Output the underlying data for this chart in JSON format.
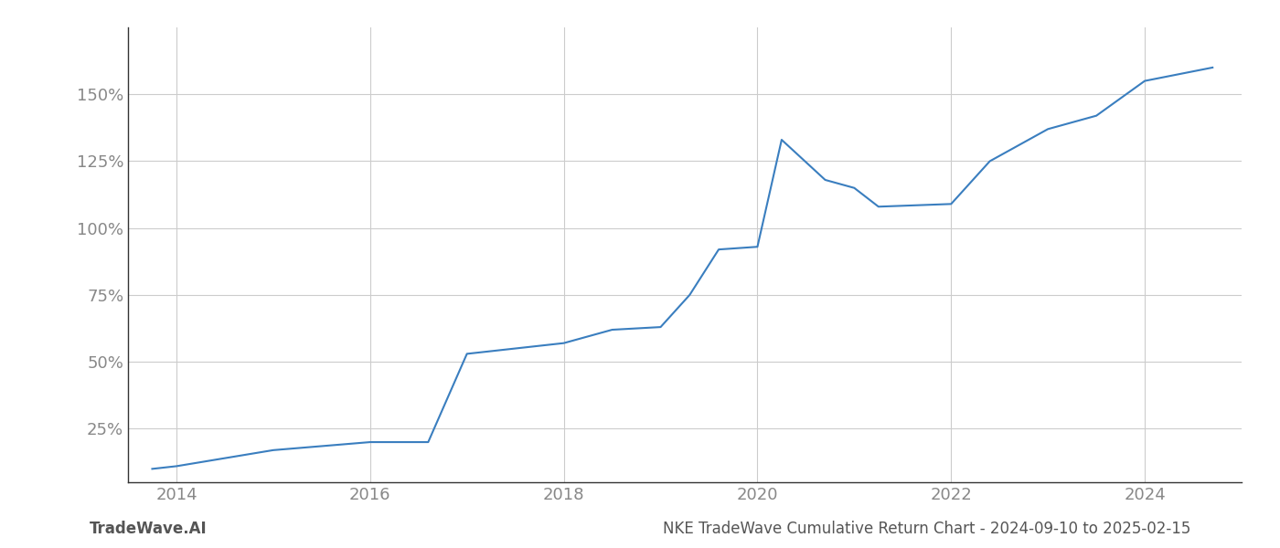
{
  "x_values": [
    2013.75,
    2014.0,
    2015.0,
    2016.0,
    2016.6,
    2017.0,
    2017.5,
    2018.0,
    2018.5,
    2019.0,
    2019.3,
    2019.6,
    2020.0,
    2020.25,
    2020.7,
    2021.0,
    2021.25,
    2022.0,
    2022.4,
    2023.0,
    2023.5,
    2024.0,
    2024.7
  ],
  "y_values": [
    10,
    11,
    17,
    20,
    20,
    53,
    55,
    57,
    62,
    63,
    75,
    92,
    93,
    133,
    118,
    115,
    108,
    109,
    125,
    137,
    142,
    155,
    160
  ],
  "line_color": "#3a7ebf",
  "line_width": 1.5,
  "xlim": [
    2013.5,
    2025.0
  ],
  "ylim": [
    5,
    175
  ],
  "xticks": [
    2014,
    2016,
    2018,
    2020,
    2022,
    2024
  ],
  "yticks": [
    25,
    50,
    75,
    100,
    125,
    150
  ],
  "grid_color": "#cccccc",
  "background_color": "#ffffff",
  "footer_left": "TradeWave.AI",
  "footer_right": "NKE TradeWave Cumulative Return Chart - 2024-09-10 to 2025-02-15",
  "tick_label_color": "#888888",
  "footer_color": "#555555",
  "spine_color": "#333333",
  "tick_fontsize": 13,
  "footer_fontsize": 12
}
